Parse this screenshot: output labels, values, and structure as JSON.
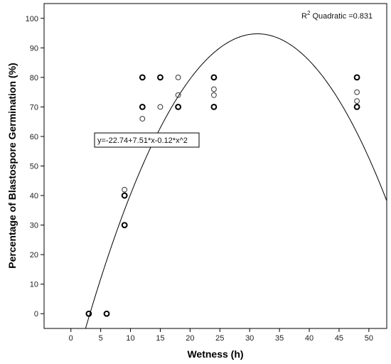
{
  "chart_data": {
    "type": "scatter",
    "title": "",
    "xlabel": "Wetness (h)",
    "ylabel": "Percentage of Blastospore Germination (%)",
    "xlim": [
      -4.5,
      53
    ],
    "ylim": [
      -5,
      105
    ],
    "xticks": [
      0,
      5,
      10,
      15,
      20,
      25,
      30,
      35,
      40,
      45,
      50
    ],
    "yticks": [
      0,
      10,
      20,
      30,
      40,
      50,
      60,
      70,
      80,
      90,
      100
    ],
    "grid": false,
    "series": [
      {
        "marker": "open-circle",
        "points": [
          {
            "x": 3,
            "y": 0,
            "bold": true
          },
          {
            "x": 6,
            "y": 0,
            "bold": true
          },
          {
            "x": 9,
            "y": 42,
            "bold": false
          },
          {
            "x": 9,
            "y": 40,
            "bold": true
          },
          {
            "x": 9,
            "y": 30,
            "bold": true
          },
          {
            "x": 12,
            "y": 80,
            "bold": true
          },
          {
            "x": 12,
            "y": 70,
            "bold": true
          },
          {
            "x": 12,
            "y": 66,
            "bold": false
          },
          {
            "x": 15,
            "y": 80,
            "bold": true
          },
          {
            "x": 15,
            "y": 70,
            "bold": false
          },
          {
            "x": 18,
            "y": 80,
            "bold": false
          },
          {
            "x": 18,
            "y": 74,
            "bold": false
          },
          {
            "x": 18,
            "y": 70,
            "bold": true
          },
          {
            "x": 24,
            "y": 80,
            "bold": true
          },
          {
            "x": 24,
            "y": 76,
            "bold": false
          },
          {
            "x": 24,
            "y": 74,
            "bold": false
          },
          {
            "x": 24,
            "y": 70,
            "bold": true
          },
          {
            "x": 48,
            "y": 80,
            "bold": true
          },
          {
            "x": 48,
            "y": 75,
            "bold": false
          },
          {
            "x": 48,
            "y": 72,
            "bold": false
          },
          {
            "x": 48,
            "y": 70,
            "bold": true
          }
        ]
      }
    ],
    "fit": {
      "type": "quadratic",
      "coefficients": {
        "a": -22.74,
        "b": 7.51,
        "c": -0.12
      },
      "equation_label": "y=-22.74+7.51*x-0.12*x^2",
      "r2_prefix": "R",
      "r2_superscript": "2",
      "r2_suffix": " Quadratic =0.831",
      "equation_anchor": {
        "x": 12,
        "y": 59
      }
    }
  }
}
